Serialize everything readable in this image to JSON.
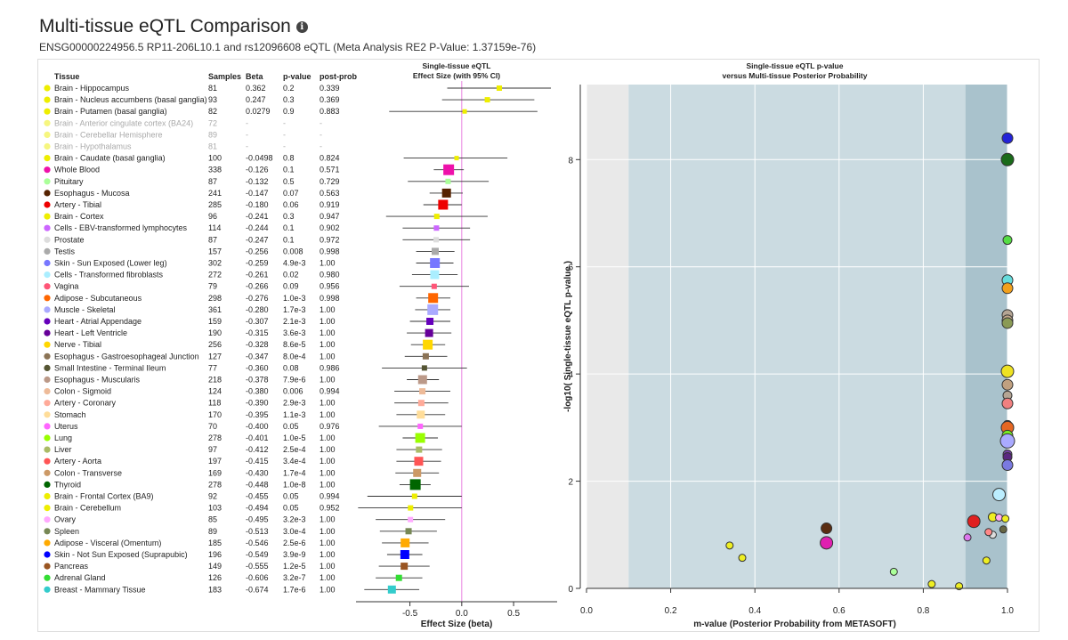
{
  "header": {
    "title": "Multi-tissue eQTL Comparison",
    "info_icon": "info-icon",
    "subtitle": "ENSG00000224956.5 RP11-206L10.1 and rs12096608 eQTL (Meta Analysis RE2 P-Value: 1.37159e-76)"
  },
  "table": {
    "columns": [
      "Tissue",
      "Samples",
      "Beta",
      "p-value",
      "post-prob"
    ]
  },
  "chart_data": [
    {
      "type": "forest",
      "title": "Single-tissue eQTL",
      "subtitle": "Effect Size (with 95% CI)",
      "xlabel": "Effect Size (beta)",
      "xlim": [
        -1.02,
        0.92
      ],
      "xticks": [
        -0.5,
        0,
        0.5
      ],
      "xtick_labels": [
        "-0.5",
        "0.0",
        "0.5"
      ],
      "reference_line": 0
    },
    {
      "type": "scatter",
      "title": "Single-tissue eQTL p-value",
      "subtitle": "versus Multi-tissue Posterior Probability",
      "xlabel": "m-value (Posterior Probability from METASOFT)",
      "ylabel": "-log10( Single-tissue eQTL p-value )",
      "xlim": [
        0,
        1
      ],
      "ylim": [
        0,
        9.4
      ],
      "xticks": [
        0,
        0.2,
        0.4,
        0.6,
        0.8,
        1.0
      ],
      "xtick_labels": [
        "0.0",
        "0.2",
        "0.4",
        "0.6",
        "0.8",
        "1.0"
      ],
      "yticks": [
        0,
        2,
        4,
        6,
        8
      ],
      "yticklabels": [
        "0",
        "2",
        "4",
        "6",
        "8"
      ],
      "regions": [
        {
          "from": 0,
          "to": 0.1,
          "color": "#e9e9e9"
        },
        {
          "from": 0.1,
          "to": 0.9,
          "color": "#cbdbe1"
        },
        {
          "from": 0.9,
          "to": 1.0,
          "color": "#a9c2cc"
        }
      ],
      "points": [
        {
          "x": 1.0,
          "y": 8.4,
          "color": "#2323d8",
          "size": 6
        },
        {
          "x": 1.0,
          "y": 8.0,
          "color": "#1a6b1a",
          "size": 7
        },
        {
          "x": 1.0,
          "y": 6.5,
          "color": "#55dd44",
          "size": 5
        },
        {
          "x": 1.0,
          "y": 5.75,
          "color": "#66dcdc",
          "size": 6
        },
        {
          "x": 1.0,
          "y": 5.6,
          "color": "#f2a01c",
          "size": 6
        },
        {
          "x": 1.0,
          "y": 5.1,
          "color": "#b5a594",
          "size": 6
        },
        {
          "x": 1.0,
          "y": 5.0,
          "color": "#c2a78a",
          "size": 6
        },
        {
          "x": 1.0,
          "y": 4.95,
          "color": "#8a9a55",
          "size": 6
        },
        {
          "x": 1.0,
          "y": 4.05,
          "color": "#eee222",
          "size": 7
        },
        {
          "x": 1.0,
          "y": 3.8,
          "color": "#c0a080",
          "size": 6
        },
        {
          "x": 1.0,
          "y": 3.6,
          "color": "#b5a594",
          "size": 5
        },
        {
          "x": 1.0,
          "y": 3.45,
          "color": "#f08080",
          "size": 6
        },
        {
          "x": 1.0,
          "y": 3.05,
          "color": "#888888",
          "size": 5
        },
        {
          "x": 1.0,
          "y": 3.0,
          "color": "#e56722",
          "size": 7
        },
        {
          "x": 1.0,
          "y": 2.85,
          "color": "#77ee22",
          "size": 6
        },
        {
          "x": 1.0,
          "y": 2.75,
          "color": "#aaaaff",
          "size": 8
        },
        {
          "x": 1.0,
          "y": 2.5,
          "color": "#7744aa",
          "size": 5
        },
        {
          "x": 1.0,
          "y": 2.45,
          "color": "#5a2780",
          "size": 5
        },
        {
          "x": 1.0,
          "y": 2.3,
          "color": "#7a7ae0",
          "size": 6
        },
        {
          "x": 0.98,
          "y": 1.75,
          "color": "#bbeeff",
          "size": 7
        },
        {
          "x": 0.965,
          "y": 1.33,
          "color": "#eeee22",
          "size": 5
        },
        {
          "x": 0.98,
          "y": 1.32,
          "color": "#ffaaee",
          "size": 4
        },
        {
          "x": 0.995,
          "y": 1.3,
          "color": "#eeee22",
          "size": 4
        },
        {
          "x": 0.92,
          "y": 1.25,
          "color": "#e02020",
          "size": 7
        },
        {
          "x": 0.99,
          "y": 1.1,
          "color": "#666644",
          "size": 4
        },
        {
          "x": 0.965,
          "y": 1.0,
          "color": "#dddddd",
          "size": 4
        },
        {
          "x": 0.955,
          "y": 1.05,
          "color": "#ff8888",
          "size": 4
        },
        {
          "x": 0.905,
          "y": 0.95,
          "color": "#dd77ee",
          "size": 4
        },
        {
          "x": 0.57,
          "y": 1.12,
          "color": "#5a2d12",
          "size": 6
        },
        {
          "x": 0.57,
          "y": 0.85,
          "color": "#e020b0",
          "size": 7
        },
        {
          "x": 0.34,
          "y": 0.8,
          "color": "#eeee22",
          "size": 4
        },
        {
          "x": 0.37,
          "y": 0.57,
          "color": "#eeee22",
          "size": 4
        },
        {
          "x": 0.95,
          "y": 0.52,
          "color": "#eeee22",
          "size": 4
        },
        {
          "x": 0.73,
          "y": 0.31,
          "color": "#aaff99",
          "size": 4
        },
        {
          "x": 0.82,
          "y": 0.08,
          "color": "#eeee22",
          "size": 4
        },
        {
          "x": 0.885,
          "y": 0.04,
          "color": "#eeee22",
          "size": 4
        }
      ]
    }
  ],
  "tissues": [
    {
      "name": "Brain - Hippocampus",
      "samples": "81",
      "beta": "0.362",
      "p": "0.2",
      "post": "0.339",
      "b": 0.362,
      "lo": -0.14,
      "hi": 0.86,
      "color": "#eeee00",
      "size": 3,
      "greyed": false
    },
    {
      "name": "Brain - Nucleus accumbens (basal ganglia)",
      "samples": "93",
      "beta": "0.247",
      "p": "0.3",
      "post": "0.369",
      "b": 0.247,
      "lo": -0.19,
      "hi": 0.7,
      "color": "#eeee00",
      "size": 3,
      "greyed": false
    },
    {
      "name": "Brain - Putamen (basal ganglia)",
      "samples": "82",
      "beta": "0.0279",
      "p": "0.9",
      "post": "0.883",
      "b": 0.0279,
      "lo": -0.7,
      "hi": 0.73,
      "color": "#eeee00",
      "size": 2.5,
      "greyed": false
    },
    {
      "name": "Brain - Anterior cingulate cortex (BA24)",
      "samples": "72",
      "beta": "-",
      "p": "-",
      "post": "-",
      "b": null,
      "lo": null,
      "hi": null,
      "color": "#eeee00",
      "size": 0,
      "greyed": true
    },
    {
      "name": "Brain - Cerebellar Hemisphere",
      "samples": "89",
      "beta": "-",
      "p": "-",
      "post": "-",
      "b": null,
      "lo": null,
      "hi": null,
      "color": "#eeee00",
      "size": 0,
      "greyed": true
    },
    {
      "name": "Brain - Hypothalamus",
      "samples": "81",
      "beta": "-",
      "p": "-",
      "post": "-",
      "b": null,
      "lo": null,
      "hi": null,
      "color": "#eeee00",
      "size": 0,
      "greyed": true
    },
    {
      "name": "Brain - Caudate (basal ganglia)",
      "samples": "100",
      "beta": "-0.0498",
      "p": "0.8",
      "post": "0.824",
      "b": -0.0498,
      "lo": -0.56,
      "hi": 0.44,
      "color": "#eeee00",
      "size": 2.5,
      "greyed": false
    },
    {
      "name": "Whole Blood",
      "samples": "338",
      "beta": "-0.126",
      "p": "0.1",
      "post": "0.571",
      "b": -0.126,
      "lo": -0.27,
      "hi": 0.02,
      "color": "#ee11aa",
      "size": 6,
      "greyed": false
    },
    {
      "name": "Pituitary",
      "samples": "87",
      "beta": "-0.132",
      "p": "0.5",
      "post": "0.729",
      "b": -0.132,
      "lo": -0.52,
      "hi": 0.26,
      "color": "#aaff99",
      "size": 3,
      "greyed": false
    },
    {
      "name": "Esophagus - Mucosa",
      "samples": "241",
      "beta": "-0.147",
      "p": "0.07",
      "post": "0.563",
      "b": -0.147,
      "lo": -0.31,
      "hi": 0.01,
      "color": "#552200",
      "size": 5,
      "greyed": false
    },
    {
      "name": "Artery - Tibial",
      "samples": "285",
      "beta": "-0.180",
      "p": "0.06",
      "post": "0.919",
      "b": -0.18,
      "lo": -0.37,
      "hi": 0.0,
      "color": "#ee0000",
      "size": 5.5,
      "greyed": false
    },
    {
      "name": "Brain - Cortex",
      "samples": "96",
      "beta": "-0.241",
      "p": "0.3",
      "post": "0.947",
      "b": -0.241,
      "lo": -0.73,
      "hi": 0.25,
      "color": "#eeee00",
      "size": 3,
      "greyed": false
    },
    {
      "name": "Cells - EBV-transformed lymphocytes",
      "samples": "114",
      "beta": "-0.244",
      "p": "0.1",
      "post": "0.902",
      "b": -0.244,
      "lo": -0.57,
      "hi": 0.08,
      "color": "#cc66ff",
      "size": 3,
      "greyed": false
    },
    {
      "name": "Prostate",
      "samples": "87",
      "beta": "-0.247",
      "p": "0.1",
      "post": "0.972",
      "b": -0.247,
      "lo": -0.57,
      "hi": 0.08,
      "color": "#dddddd",
      "size": 3,
      "greyed": false
    },
    {
      "name": "Testis",
      "samples": "157",
      "beta": "-0.256",
      "p": "0.008",
      "post": "0.998",
      "b": -0.256,
      "lo": -0.44,
      "hi": -0.07,
      "color": "#aaaaaa",
      "size": 4,
      "greyed": false
    },
    {
      "name": "Skin - Sun Exposed (Lower leg)",
      "samples": "302",
      "beta": "-0.259",
      "p": "4.9e-3",
      "post": "1.00",
      "b": -0.259,
      "lo": -0.44,
      "hi": -0.08,
      "color": "#7777ff",
      "size": 5.5,
      "greyed": false
    },
    {
      "name": "Cells - Transformed fibroblasts",
      "samples": "272",
      "beta": "-0.261",
      "p": "0.02",
      "post": "0.980",
      "b": -0.261,
      "lo": -0.48,
      "hi": -0.04,
      "color": "#aaeeff",
      "size": 5,
      "greyed": false
    },
    {
      "name": "Vagina",
      "samples": "79",
      "beta": "-0.266",
      "p": "0.09",
      "post": "0.956",
      "b": -0.266,
      "lo": -0.6,
      "hi": 0.07,
      "color": "#ff5577",
      "size": 3,
      "greyed": false
    },
    {
      "name": "Adipose - Subcutaneous",
      "samples": "298",
      "beta": "-0.276",
      "p": "1.0e-3",
      "post": "0.998",
      "b": -0.276,
      "lo": -0.44,
      "hi": -0.11,
      "color": "#ff6600",
      "size": 5.5,
      "greyed": false
    },
    {
      "name": "Muscle - Skeletal",
      "samples": "361",
      "beta": "-0.280",
      "p": "1.7e-3",
      "post": "1.00",
      "b": -0.28,
      "lo": -0.45,
      "hi": -0.11,
      "color": "#aaaaff",
      "size": 6,
      "greyed": false
    },
    {
      "name": "Heart - Atrial Appendage",
      "samples": "159",
      "beta": "-0.307",
      "p": "2.1e-3",
      "post": "1.00",
      "b": -0.307,
      "lo": -0.5,
      "hi": -0.11,
      "color": "#6600bb",
      "size": 4,
      "greyed": false
    },
    {
      "name": "Heart - Left Ventricle",
      "samples": "190",
      "beta": "-0.315",
      "p": "3.6e-3",
      "post": "1.00",
      "b": -0.315,
      "lo": -0.53,
      "hi": -0.1,
      "color": "#660099",
      "size": 4.5,
      "greyed": false
    },
    {
      "name": "Nerve - Tibial",
      "samples": "256",
      "beta": "-0.328",
      "p": "8.6e-5",
      "post": "1.00",
      "b": -0.328,
      "lo": -0.49,
      "hi": -0.16,
      "color": "#ffd700",
      "size": 5.5,
      "greyed": false
    },
    {
      "name": "Esophagus - Gastroesophageal Junction",
      "samples": "127",
      "beta": "-0.347",
      "p": "8.0e-4",
      "post": "1.00",
      "b": -0.347,
      "lo": -0.55,
      "hi": -0.14,
      "color": "#8b7355",
      "size": 3.5,
      "greyed": false
    },
    {
      "name": "Small Intestine - Terminal Ileum",
      "samples": "77",
      "beta": "-0.360",
      "p": "0.08",
      "post": "0.986",
      "b": -0.36,
      "lo": -0.77,
      "hi": 0.05,
      "color": "#555533",
      "size": 3,
      "greyed": false
    },
    {
      "name": "Esophagus - Muscularis",
      "samples": "218",
      "beta": "-0.378",
      "p": "7.9e-6",
      "post": "1.00",
      "b": -0.378,
      "lo": -0.53,
      "hi": -0.22,
      "color": "#bb9988",
      "size": 5,
      "greyed": false
    },
    {
      "name": "Colon - Sigmoid",
      "samples": "124",
      "beta": "-0.380",
      "p": "0.006",
      "post": "0.994",
      "b": -0.38,
      "lo": -0.65,
      "hi": -0.11,
      "color": "#eebb99",
      "size": 3.5,
      "greyed": false
    },
    {
      "name": "Artery - Coronary",
      "samples": "118",
      "beta": "-0.390",
      "p": "2.9e-3",
      "post": "1.00",
      "b": -0.39,
      "lo": -0.65,
      "hi": -0.13,
      "color": "#ffaa99",
      "size": 3.5,
      "greyed": false
    },
    {
      "name": "Stomach",
      "samples": "170",
      "beta": "-0.395",
      "p": "1.1e-3",
      "post": "1.00",
      "b": -0.395,
      "lo": -0.63,
      "hi": -0.16,
      "color": "#ffdd99",
      "size": 4.5,
      "greyed": false
    },
    {
      "name": "Uterus",
      "samples": "70",
      "beta": "-0.400",
      "p": "0.05",
      "post": "0.976",
      "b": -0.4,
      "lo": -0.8,
      "hi": 0.0,
      "color": "#ff66ff",
      "size": 3,
      "greyed": false
    },
    {
      "name": "Lung",
      "samples": "278",
      "beta": "-0.401",
      "p": "1.0e-5",
      "post": "1.00",
      "b": -0.401,
      "lo": -0.57,
      "hi": -0.23,
      "color": "#99ff00",
      "size": 5.5,
      "greyed": false
    },
    {
      "name": "Liver",
      "samples": "97",
      "beta": "-0.412",
      "p": "2.5e-4",
      "post": "1.00",
      "b": -0.412,
      "lo": -0.63,
      "hi": -0.19,
      "color": "#aabb66",
      "size": 3.5,
      "greyed": false
    },
    {
      "name": "Artery - Aorta",
      "samples": "197",
      "beta": "-0.415",
      "p": "3.4e-4",
      "post": "1.00",
      "b": -0.415,
      "lo": -0.63,
      "hi": -0.2,
      "color": "#ff5555",
      "size": 5,
      "greyed": false
    },
    {
      "name": "Colon - Transverse",
      "samples": "169",
      "beta": "-0.430",
      "p": "1.7e-4",
      "post": "1.00",
      "b": -0.43,
      "lo": -0.64,
      "hi": -0.22,
      "color": "#cc9966",
      "size": 4.5,
      "greyed": false
    },
    {
      "name": "Thyroid",
      "samples": "278",
      "beta": "-0.448",
      "p": "1.0e-8",
      "post": "1.00",
      "b": -0.448,
      "lo": -0.6,
      "hi": -0.3,
      "color": "#006600",
      "size": 6,
      "greyed": false
    },
    {
      "name": "Brain - Frontal Cortex (BA9)",
      "samples": "92",
      "beta": "-0.455",
      "p": "0.05",
      "post": "0.994",
      "b": -0.455,
      "lo": -0.91,
      "hi": 0.0,
      "color": "#eeee00",
      "size": 3,
      "greyed": false
    },
    {
      "name": "Brain - Cerebellum",
      "samples": "103",
      "beta": "-0.494",
      "p": "0.05",
      "post": "0.952",
      "b": -0.494,
      "lo": -1.0,
      "hi": 0.0,
      "color": "#eeee00",
      "size": 3,
      "greyed": false
    },
    {
      "name": "Ovary",
      "samples": "85",
      "beta": "-0.495",
      "p": "3.2e-3",
      "post": "1.00",
      "b": -0.495,
      "lo": -0.83,
      "hi": -0.16,
      "color": "#ffaaff",
      "size": 3,
      "greyed": false
    },
    {
      "name": "Spleen",
      "samples": "89",
      "beta": "-0.513",
      "p": "3.0e-4",
      "post": "1.00",
      "b": -0.513,
      "lo": -0.79,
      "hi": -0.24,
      "color": "#778855",
      "size": 3.5,
      "greyed": false
    },
    {
      "name": "Adipose - Visceral (Omentum)",
      "samples": "185",
      "beta": "-0.546",
      "p": "2.5e-6",
      "post": "1.00",
      "b": -0.546,
      "lo": -0.77,
      "hi": -0.32,
      "color": "#ffaa00",
      "size": 5,
      "greyed": false
    },
    {
      "name": "Skin - Not Sun Exposed (Suprapubic)",
      "samples": "196",
      "beta": "-0.549",
      "p": "3.9e-9",
      "post": "1.00",
      "b": -0.549,
      "lo": -0.72,
      "hi": -0.38,
      "color": "#0000ff",
      "size": 5,
      "greyed": false
    },
    {
      "name": "Pancreas",
      "samples": "149",
      "beta": "-0.555",
      "p": "1.2e-5",
      "post": "1.00",
      "b": -0.555,
      "lo": -0.8,
      "hi": -0.31,
      "color": "#995522",
      "size": 4,
      "greyed": false
    },
    {
      "name": "Adrenal Gland",
      "samples": "126",
      "beta": "-0.606",
      "p": "3.2e-7",
      "post": "1.00",
      "b": -0.606,
      "lo": -0.83,
      "hi": -0.38,
      "color": "#33dd33",
      "size": 3.5,
      "greyed": false
    },
    {
      "name": "Breast - Mammary Tissue",
      "samples": "183",
      "beta": "-0.674",
      "p": "1.7e-6",
      "post": "1.00",
      "b": -0.674,
      "lo": -0.94,
      "hi": -0.41,
      "color": "#33cccc",
      "size": 4.5,
      "greyed": false
    }
  ]
}
